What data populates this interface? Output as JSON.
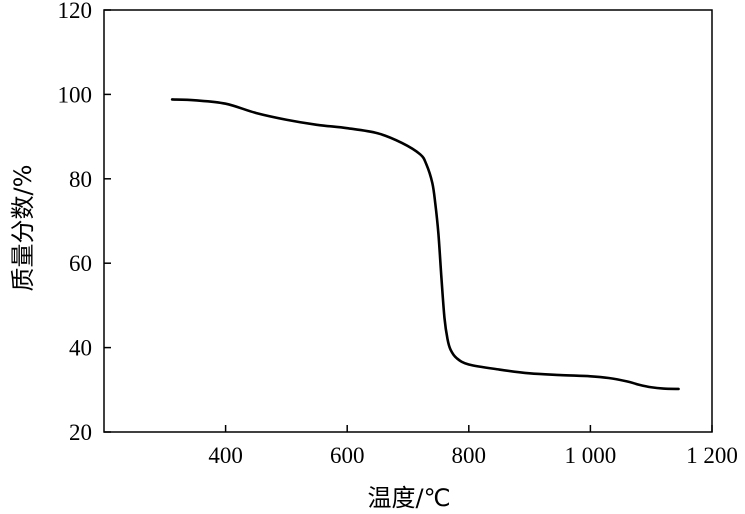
{
  "chart_data": {
    "type": "line",
    "xlabel": "温度/℃",
    "ylabel": "质量分数/%",
    "xlim": [
      200,
      1200
    ],
    "ylim": [
      20,
      120
    ],
    "x_ticks": [
      400,
      600,
      800,
      1000,
      1200
    ],
    "x_tick_labels": [
      "400",
      "600",
      "800",
      "1 000",
      "1 200"
    ],
    "y_ticks": [
      20,
      40,
      60,
      80,
      100,
      120
    ],
    "y_tick_labels": [
      "20",
      "40",
      "60",
      "80",
      "100",
      "120"
    ],
    "grid": false,
    "series": [
      {
        "color": "#000000",
        "x": [
          312,
          350,
          400,
          450,
          500,
          550,
          600,
          650,
          690,
          720,
          730,
          740,
          745,
          750,
          755,
          760,
          765,
          770,
          780,
          800,
          850,
          900,
          950,
          1000,
          1030,
          1060,
          1080,
          1100,
          1120,
          1145
        ],
        "y": [
          98.8,
          98.6,
          97.8,
          95.6,
          94.0,
          92.8,
          92.0,
          90.8,
          88.5,
          85.8,
          83.5,
          79.0,
          74.0,
          67.0,
          56.5,
          47.0,
          42.0,
          39.5,
          37.5,
          36.0,
          34.8,
          33.9,
          33.5,
          33.2,
          32.8,
          32.0,
          31.2,
          30.6,
          30.3,
          30.2
        ]
      }
    ]
  }
}
